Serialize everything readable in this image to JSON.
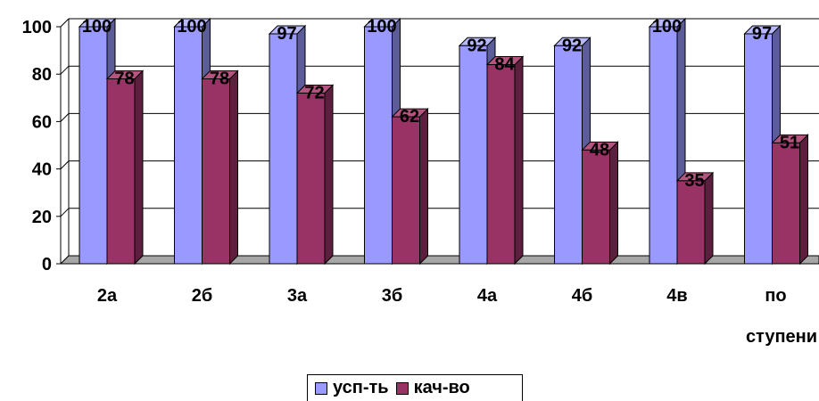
{
  "chart_data": {
    "type": "bar",
    "categories": [
      "2а",
      "2б",
      "3а",
      "3б",
      "4а",
      "4б",
      "4в",
      "по ступени"
    ],
    "series": [
      {
        "name": "усп-ть",
        "values": [
          100,
          100,
          97,
          100,
          92,
          92,
          100,
          97
        ],
        "color": "#9999ff",
        "side_color": "#5c5c99",
        "top_color": "#b8b8ff"
      },
      {
        "name": "кач-во",
        "values": [
          78,
          78,
          72,
          62,
          84,
          48,
          35,
          51
        ],
        "color": "#993366",
        "side_color": "#5c1f3d",
        "top_color": "#b3557f"
      }
    ],
    "ylim": [
      0,
      100
    ],
    "yticks": [
      "0",
      "20",
      "40",
      "60",
      "80",
      "100"
    ],
    "grid": true,
    "legend_position": "bottom"
  }
}
